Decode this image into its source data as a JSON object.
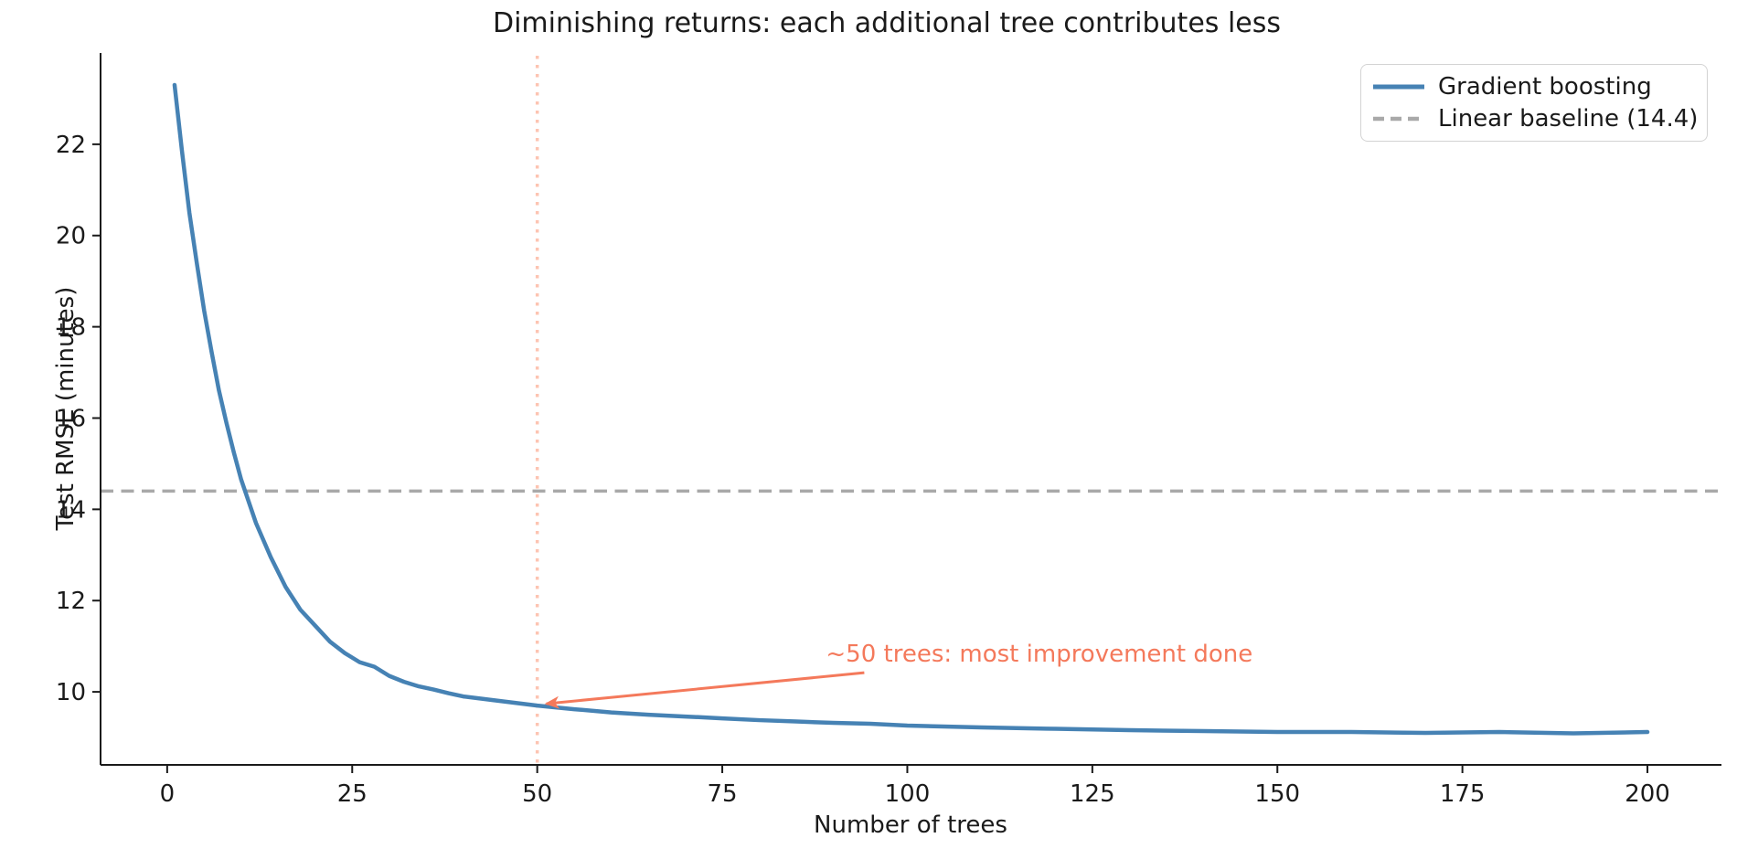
{
  "chart_data": {
    "type": "line",
    "title": "Diminishing returns: each additional tree contributes less",
    "xlabel": "Number of trees",
    "ylabel": "Test RMSE (minutes)",
    "xlim": [
      -9,
      210
    ],
    "ylim": [
      8.4,
      24.0
    ],
    "xticks": [
      0,
      25,
      50,
      75,
      100,
      125,
      150,
      175,
      200
    ],
    "yticks": [
      10,
      12,
      14,
      16,
      18,
      20,
      22
    ],
    "grid": false,
    "legend_position": "upper right",
    "series": [
      {
        "name": "Gradient boosting",
        "color": "#4682b4",
        "style": "solid",
        "x": [
          1,
          2,
          3,
          4,
          5,
          6,
          7,
          8,
          9,
          10,
          12,
          14,
          16,
          18,
          20,
          22,
          24,
          26,
          28,
          30,
          32,
          34,
          36,
          38,
          40,
          44,
          48,
          50,
          55,
          60,
          65,
          70,
          75,
          80,
          85,
          90,
          95,
          100,
          110,
          120,
          130,
          140,
          150,
          160,
          170,
          180,
          190,
          200
        ],
        "y": [
          23.3,
          21.85,
          20.5,
          19.4,
          18.35,
          17.45,
          16.6,
          15.9,
          15.25,
          14.65,
          13.7,
          12.95,
          12.3,
          11.8,
          11.45,
          11.1,
          10.85,
          10.65,
          10.55,
          10.35,
          10.22,
          10.12,
          10.05,
          9.97,
          9.9,
          9.82,
          9.74,
          9.7,
          9.62,
          9.55,
          9.5,
          9.46,
          9.42,
          9.38,
          9.35,
          9.32,
          9.3,
          9.26,
          9.22,
          9.19,
          9.16,
          9.14,
          9.12,
          9.12,
          9.1,
          9.12,
          9.09,
          9.12
        ]
      },
      {
        "name": "Linear baseline (14.4)",
        "color": "#a9a9a9",
        "style": "dashed",
        "y_const": 14.4
      }
    ],
    "vline": {
      "x": 50,
      "color": "#fb7d56",
      "style": "dotted",
      "opacity": 0.45
    },
    "annotation": {
      "text": "~50 trees: most improvement done",
      "xy": [
        50,
        9.7
      ],
      "xytext": [
        89,
        10.82
      ],
      "color": "#f4795b"
    }
  }
}
